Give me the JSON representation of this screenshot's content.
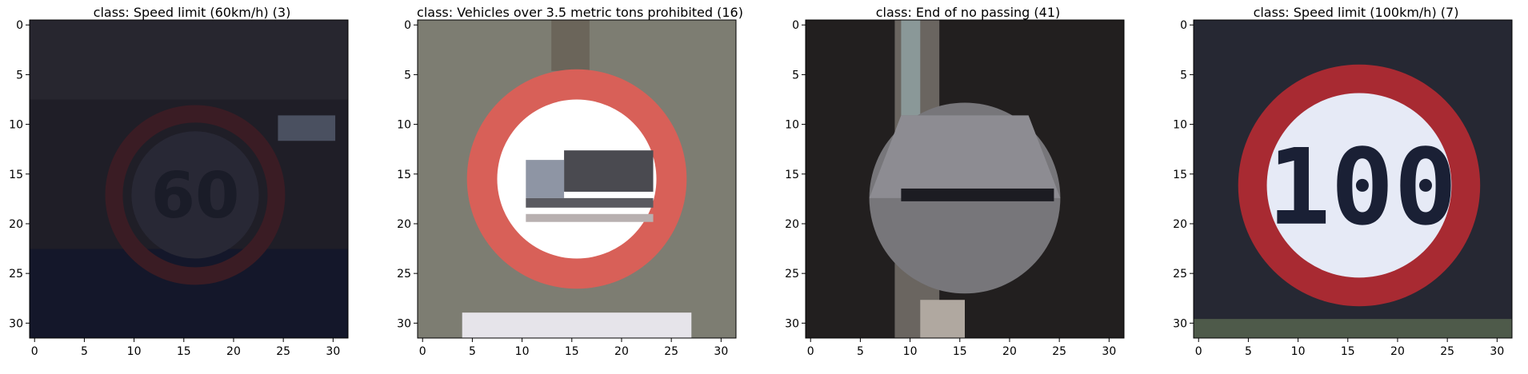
{
  "figure": {
    "panels": [
      {
        "title": "class: Speed limit (60km/h) (3)",
        "scene": "dark-speed-sign",
        "x_ticks": [
          "0",
          "5",
          "10",
          "15",
          "20",
          "25",
          "30"
        ],
        "y_ticks": [
          "0",
          "5",
          "10",
          "15",
          "20",
          "25",
          "30"
        ],
        "xlim": [
          -0.5,
          31.5
        ],
        "ylim": [
          31.5,
          -0.5
        ]
      },
      {
        "title": "class: Vehicles over 3.5 metric tons prohibited (16)",
        "scene": "truck-prohibited-sign",
        "x_ticks": [
          "0",
          "5",
          "10",
          "15",
          "20",
          "25",
          "30"
        ],
        "y_ticks": [
          "0",
          "5",
          "10",
          "15",
          "20",
          "25",
          "30"
        ],
        "xlim": [
          -0.5,
          31.5
        ],
        "ylim": [
          31.5,
          -0.5
        ]
      },
      {
        "title": "class: End of no passing (41)",
        "scene": "end-no-passing-sign",
        "x_ticks": [
          "0",
          "5",
          "10",
          "15",
          "20",
          "25",
          "30"
        ],
        "y_ticks": [
          "0",
          "5",
          "10",
          "15",
          "20",
          "25",
          "30"
        ],
        "xlim": [
          -0.5,
          31.5
        ],
        "ylim": [
          31.5,
          -0.5
        ]
      },
      {
        "title": "class: Speed limit (100km/h) (7)",
        "scene": "speed-100-sign",
        "x_ticks": [
          "0",
          "5",
          "10",
          "15",
          "20",
          "25",
          "30"
        ],
        "y_ticks": [
          "0",
          "5",
          "10",
          "15",
          "20",
          "25",
          "30"
        ],
        "xlim": [
          -0.5,
          31.5
        ],
        "ylim": [
          31.5,
          -0.5
        ]
      }
    ],
    "colors": {
      "sign_red": "#d86058",
      "sign_dark_red": "#a82a32",
      "dark_bg": "#1e1d28",
      "grey_bg": "#7d7d72"
    }
  }
}
